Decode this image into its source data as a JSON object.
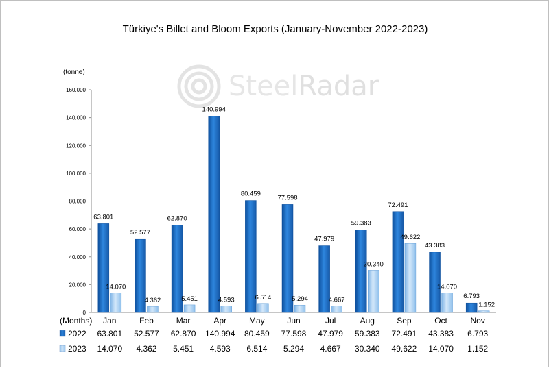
{
  "chart_data": {
    "type": "bar",
    "title": "Türkiye's Billet and Bloom Exports (January-November 2022-2023)",
    "ylabel": "(tonne)",
    "xlabel": "(Months)",
    "ylim": [
      0,
      160000
    ],
    "yticks": [
      0,
      20000,
      40000,
      60000,
      80000,
      100000,
      120000,
      140000,
      160000
    ],
    "ytick_labels": [
      "0",
      "20.000",
      "40.000",
      "60.000",
      "80.000",
      "100.000",
      "120.000",
      "140.000",
      "160.000"
    ],
    "categories": [
      "Jan",
      "Feb",
      "Mar",
      "Apr",
      "May",
      "Jun",
      "Jul",
      "Aug",
      "Sep",
      "Oct",
      "Nov"
    ],
    "series": [
      {
        "name": "2022",
        "color": "#1f6fc5",
        "values": [
          63801,
          52577,
          62870,
          140994,
          80459,
          77598,
          47979,
          59383,
          72491,
          43383,
          6793
        ],
        "labels": [
          "63.801",
          "52.577",
          "62.870",
          "140.994",
          "80.459",
          "77.598",
          "47.979",
          "59.383",
          "72.491",
          "43.383",
          "6.793"
        ]
      },
      {
        "name": "2023",
        "color": "#a9d0f5",
        "values": [
          14070,
          4362,
          5451,
          4593,
          6514,
          5294,
          4667,
          30340,
          49622,
          14070,
          1152
        ],
        "labels": [
          "14.070",
          "4.362",
          "5.451",
          "4.593",
          "6.514",
          "5.294",
          "4.667",
          "30.340",
          "49.622",
          "14.070",
          "1.152"
        ]
      }
    ],
    "grid": false,
    "legend": "data-table-bottom"
  },
  "watermark": {
    "brand_light": "Steel",
    "brand_bold": "Radar"
  }
}
